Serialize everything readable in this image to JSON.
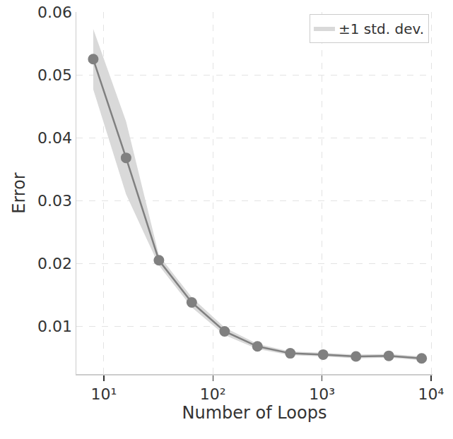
{
  "chart_data": {
    "type": "line",
    "xlabel": "Number of Loops",
    "ylabel": "Error",
    "x": [
      8,
      16,
      32,
      64,
      128,
      256,
      512,
      1024,
      2048,
      4096,
      8192
    ],
    "values": [
      0.0525,
      0.0368,
      0.0205,
      0.0138,
      0.0092,
      0.0068,
      0.0057,
      0.0055,
      0.0052,
      0.0053,
      0.0049
    ],
    "color": "#808080",
    "marker": "circle",
    "line_style": "solid",
    "error_band": {
      "name": "±1 std. dev.",
      "color": "#d9d9d9",
      "values": [
        0.0048,
        0.0058,
        0.0008,
        0.0008,
        0.0006,
        0.0004,
        0.0003,
        0.0003,
        0.0003,
        0.0003,
        0.0003
      ]
    },
    "log": "x",
    "xlim": [
      5.6,
      10300
    ],
    "xticks": [
      {
        "value": 10,
        "label": "10¹"
      },
      {
        "value": 100,
        "label": "10²"
      },
      {
        "value": 1000,
        "label": "10³"
      },
      {
        "value": 10000,
        "label": "10⁴"
      }
    ],
    "ylim": [
      0.0024,
      0.06
    ],
    "yticks": [
      0.01,
      0.02,
      0.03,
      0.04,
      0.05,
      0.06
    ],
    "grid": true,
    "legend": "upper right"
  }
}
